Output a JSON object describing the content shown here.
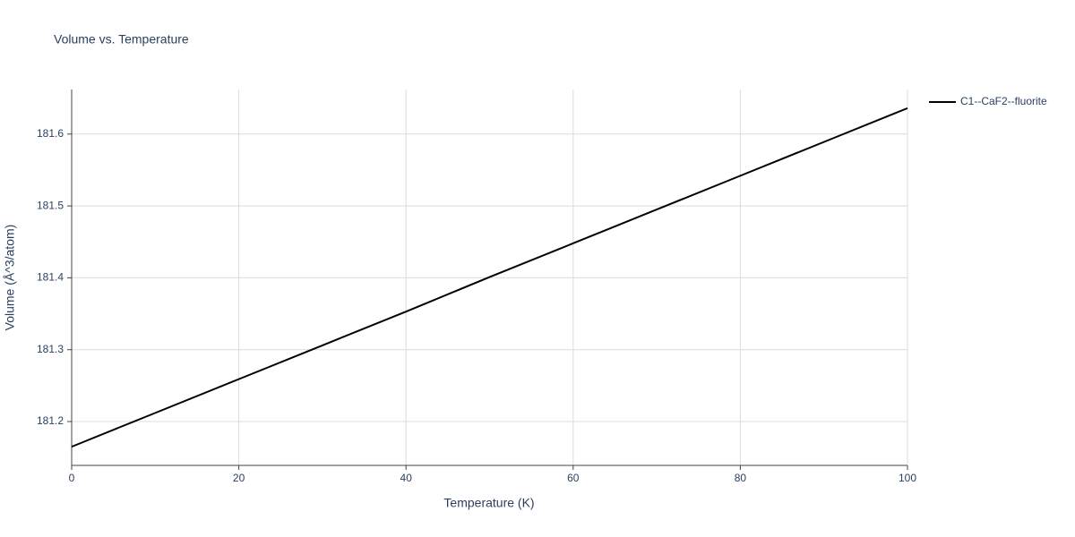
{
  "chart_data": {
    "type": "line",
    "title": "Volume vs. Temperature",
    "x_label": "Temperature (K)",
    "y_label": "Volume (Å^3/atom)",
    "x": [
      0,
      10,
      20,
      30,
      40,
      50,
      60,
      70,
      80,
      90,
      100
    ],
    "series": [
      {
        "name": "C1--CaF2--fluorite",
        "color": "#000000",
        "values": [
          181.165,
          181.212,
          181.259,
          181.306,
          181.353,
          181.401,
          181.448,
          181.495,
          181.542,
          181.589,
          181.636
        ]
      }
    ],
    "xlim": [
      0,
      100
    ],
    "xticks": [
      0,
      20,
      40,
      60,
      80,
      100
    ],
    "ylim": [
      181.139,
      181.662
    ],
    "yticks": [
      {
        "value": 181.2,
        "label": "181.2"
      },
      {
        "value": 181.3,
        "label": "181.3"
      },
      {
        "value": 181.4,
        "label": "181.4"
      },
      {
        "value": 181.5,
        "label": "181.5"
      },
      {
        "value": 181.6,
        "label": "181.6"
      }
    ],
    "grid": true,
    "legend": "right"
  }
}
